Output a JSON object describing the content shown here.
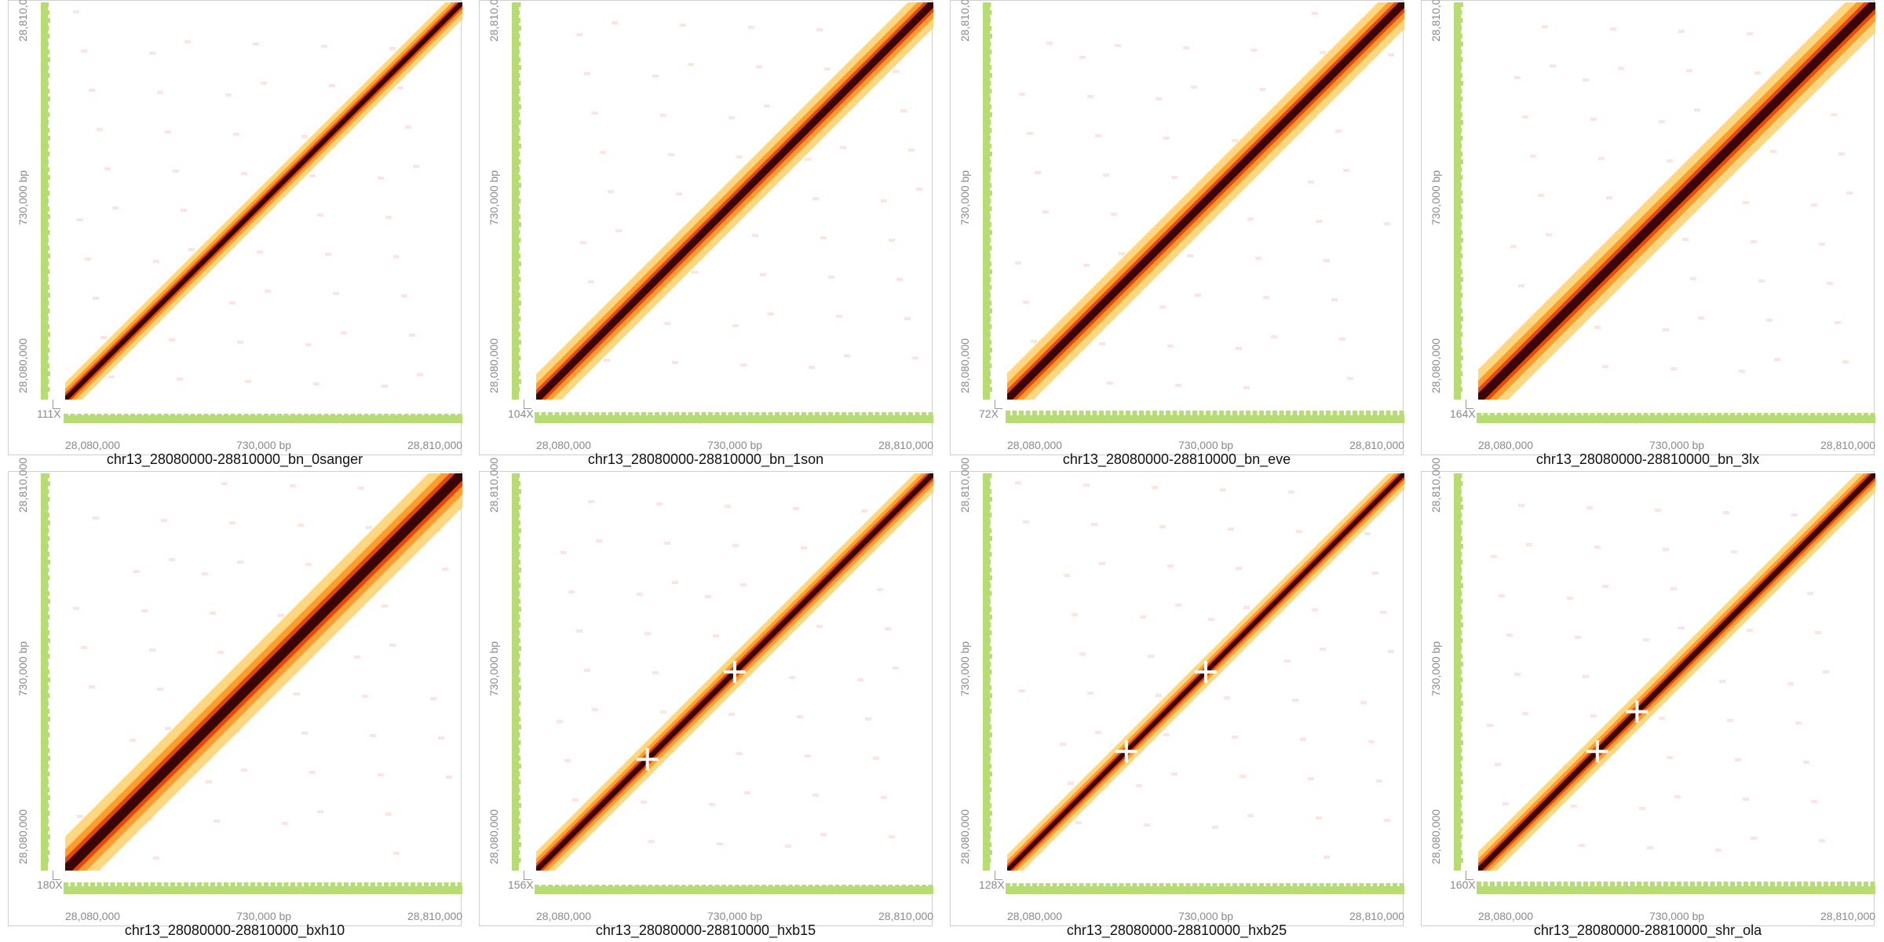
{
  "panels": [
    {
      "title": "chr13_28080000-28810000_bn_0sanger",
      "coverage": "111X"
    },
    {
      "title": "chr13_28080000-28810000_bn_1son",
      "coverage": "104X"
    },
    {
      "title": "chr13_28080000-28810000_bn_eve",
      "coverage": "72X"
    },
    {
      "title": "chr13_28080000-28810000_bn_3lx",
      "coverage": "164X"
    },
    {
      "title": "chr13_28080000-28810000_bxh10",
      "coverage": "180X"
    },
    {
      "title": "chr13_28080000-28810000_hxb15",
      "coverage": "156X"
    },
    {
      "title": "chr13_28080000-28810000_hxb25",
      "coverage": "128X"
    },
    {
      "title": "chr13_28080000-28810000_shr_ola",
      "coverage": "160X"
    }
  ],
  "axis": {
    "start": "28,080,000",
    "mid": "730,000 bp",
    "end": "28,810,000"
  },
  "colors": {
    "coverage_track": "#b8dc74",
    "heat_low": "#ffd06a",
    "heat_mid": "#e5480d",
    "heat_high": "#3a0505"
  }
}
